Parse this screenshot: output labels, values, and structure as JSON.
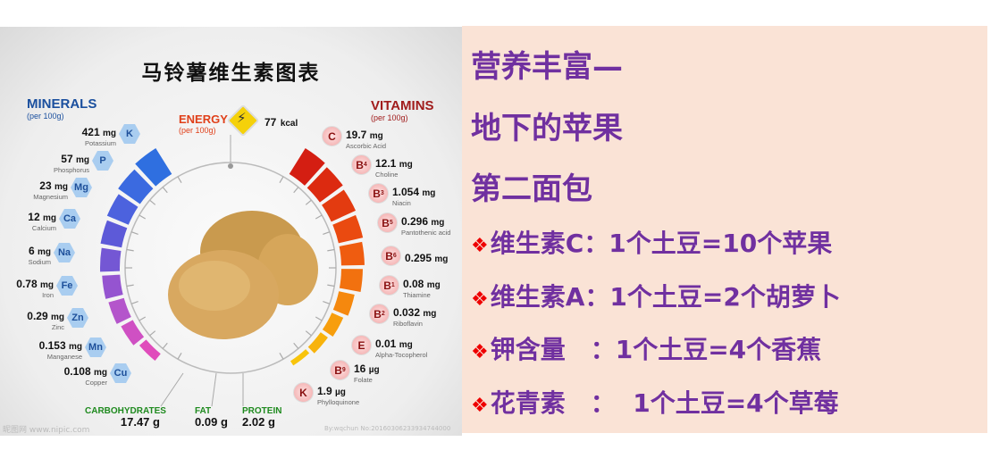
{
  "infographic": {
    "title": "马铃薯维生素图表",
    "minerals": {
      "heading": "MINERALS",
      "per": "(per 100g)",
      "color": "#1a4f9e",
      "items": [
        {
          "symbol": "K",
          "value": "421",
          "unit": "mg",
          "name": "Potassium"
        },
        {
          "symbol": "P",
          "value": "57",
          "unit": "mg",
          "name": "Phosphorus"
        },
        {
          "symbol": "Mg",
          "value": "23",
          "unit": "mg",
          "name": "Magnesium"
        },
        {
          "symbol": "Ca",
          "value": "12",
          "unit": "mg",
          "name": "Calcium"
        },
        {
          "symbol": "Na",
          "value": "6",
          "unit": "mg",
          "name": "Sodium"
        },
        {
          "symbol": "Fe",
          "value": "0.78",
          "unit": "mg",
          "name": "Iron"
        },
        {
          "symbol": "Zn",
          "value": "0.29",
          "unit": "mg",
          "name": "Zinc"
        },
        {
          "symbol": "Mn",
          "value": "0.153",
          "unit": "mg",
          "name": "Manganese"
        },
        {
          "symbol": "Cu",
          "value": "0.108",
          "unit": "mg",
          "name": "Copper"
        }
      ]
    },
    "energy": {
      "heading": "ENERGY",
      "per": "(per 100g)",
      "value": "77",
      "unit": "kcal",
      "color": "#e0401a"
    },
    "vitamins": {
      "heading": "VITAMINS",
      "per": "(per 100g)",
      "color": "#a01c1c",
      "items": [
        {
          "symbol": "C",
          "sub": "",
          "value": "19.7",
          "unit": "mg",
          "name": "Ascorbic Acid"
        },
        {
          "symbol": "B",
          "sub": "4",
          "value": "12.1",
          "unit": "mg",
          "name": "Choline"
        },
        {
          "symbol": "B",
          "sub": "3",
          "value": "1.054",
          "unit": "mg",
          "name": "Niacin"
        },
        {
          "symbol": "B",
          "sub": "5",
          "value": "0.296",
          "unit": "mg",
          "name": "Pantothenic acid"
        },
        {
          "symbol": "B",
          "sub": "6",
          "value": "0.295",
          "unit": "mg",
          "name": ""
        },
        {
          "symbol": "B",
          "sub": "1",
          "value": "0.08",
          "unit": "mg",
          "name": "Thiamine"
        },
        {
          "symbol": "B",
          "sub": "2",
          "value": "0.032",
          "unit": "mg",
          "name": "Riboflavin"
        },
        {
          "symbol": "E",
          "sub": "",
          "value": "0.01",
          "unit": "mg",
          "name": "Alpha-Tocopherol"
        },
        {
          "symbol": "B",
          "sub": "9",
          "value": "16",
          "unit": "µg",
          "name": "Folate"
        },
        {
          "symbol": "K",
          "sub": "",
          "value": "1.9",
          "unit": "µg",
          "name": "Phylloquinone"
        }
      ]
    },
    "macros": [
      {
        "label": "CARBOHYDRATES",
        "value": "17.47",
        "unit": "g"
      },
      {
        "label": "FAT",
        "value": "0.09",
        "unit": "g"
      },
      {
        "label": "PROTEIN",
        "value": "2.02",
        "unit": "g"
      }
    ],
    "watermark_left": "昵图网 www.nipic.com",
    "watermark_right": "By:wqchun No:20160306233934744000"
  },
  "panel": {
    "text_color": "#7030a0",
    "bullet_color": "#e00000",
    "headings": [
      "营养丰富—",
      "地下的苹果",
      "第二面包"
    ],
    "bullet": "❖",
    "facts": [
      "维生素C：1个土豆=10个苹果",
      "维生素A：1个土豆=2个胡萝卜",
      "钾含量　：1个土豆=4个香蕉",
      "花青素　：  1个土豆=4个草莓"
    ]
  }
}
